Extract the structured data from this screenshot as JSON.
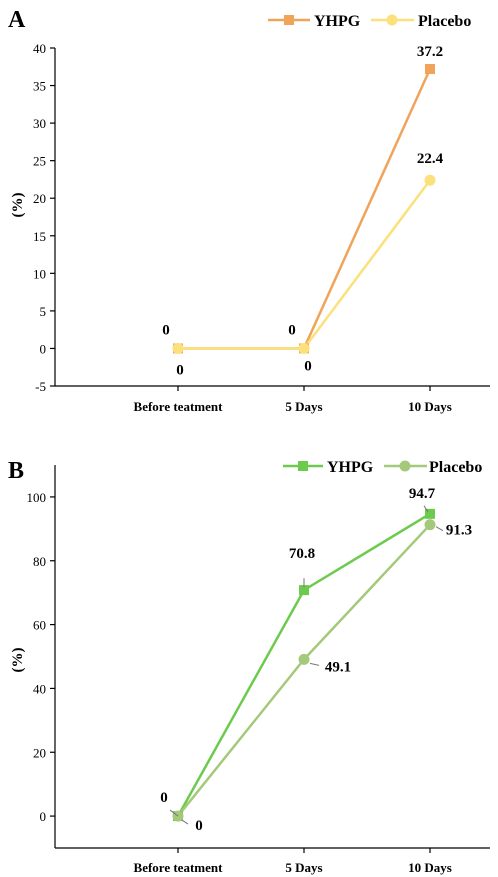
{
  "chart_data": [
    {
      "panel_label": "A",
      "type": "line",
      "categories": [
        "Before teatment",
        "5 Days",
        "10 Days"
      ],
      "ylabel": "(%)",
      "ylim": [
        -5,
        40
      ],
      "yticks": [
        "-5",
        "0",
        "5",
        "10",
        "15",
        "20",
        "25",
        "30",
        "35",
        "40"
      ],
      "ytick_values": [
        -5,
        0,
        5,
        10,
        15,
        20,
        25,
        30,
        35,
        40
      ],
      "grid": false,
      "legend": "top-right",
      "series": [
        {
          "name": "YHPG",
          "values": [
            0,
            0,
            37.2
          ],
          "labels": [
            "0",
            "0",
            "37.2"
          ],
          "color": "#F0A45A",
          "marker": "square"
        },
        {
          "name": "Placebo",
          "values": [
            0,
            0,
            22.4
          ],
          "labels": [
            "0",
            "0",
            "22.4"
          ],
          "color": "#FBE07C",
          "marker": "circle"
        }
      ]
    },
    {
      "panel_label": "B",
      "type": "line",
      "categories": [
        "Before teatment",
        "5 Days",
        "10 Days"
      ],
      "ylabel": "(%)",
      "ylim": [
        -10,
        110
      ],
      "yticks": [
        "0",
        "20",
        "40",
        "60",
        "80",
        "100"
      ],
      "ytick_values": [
        0,
        20,
        40,
        60,
        80,
        100
      ],
      "grid": false,
      "legend": "top-right",
      "series": [
        {
          "name": "YHPG",
          "values": [
            0,
            70.8,
            94.7
          ],
          "labels": [
            "0",
            "70.8",
            "94.7"
          ],
          "color": "#6CCB4C",
          "marker": "square"
        },
        {
          "name": "Placebo",
          "values": [
            0,
            49.1,
            91.3
          ],
          "labels": [
            "0",
            "49.1",
            "91.3"
          ],
          "color": "#A5C97A",
          "marker": "circle"
        }
      ]
    }
  ]
}
